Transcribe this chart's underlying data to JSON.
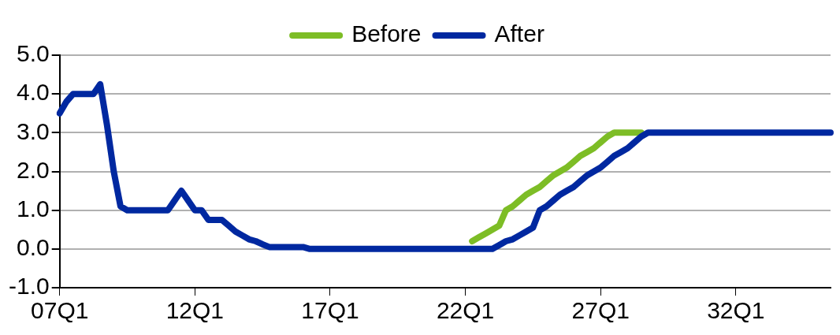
{
  "chart_data": {
    "type": "line",
    "categories": [
      "07Q1",
      null,
      null,
      null,
      null,
      null,
      null,
      null,
      null,
      null,
      null,
      null,
      null,
      null,
      null,
      null,
      null,
      null,
      null,
      null,
      "12Q1",
      null,
      null,
      null,
      null,
      null,
      null,
      null,
      null,
      null,
      null,
      null,
      null,
      null,
      null,
      null,
      null,
      null,
      null,
      null,
      "17Q1",
      null,
      null,
      null,
      null,
      null,
      null,
      null,
      null,
      null,
      null,
      null,
      null,
      null,
      null,
      null,
      null,
      null,
      null,
      null,
      "22Q1",
      null,
      null,
      null,
      null,
      null,
      null,
      null,
      null,
      null,
      null,
      null,
      null,
      null,
      null,
      null,
      null,
      null,
      null,
      null,
      "27Q1",
      null,
      null,
      null,
      null,
      null,
      null,
      null,
      null,
      null,
      null,
      null,
      null,
      null,
      null,
      null,
      null,
      null,
      null,
      null,
      "32Q1",
      null,
      null,
      null,
      null,
      null,
      null,
      null,
      null,
      null,
      null,
      null,
      null,
      null,
      null
    ],
    "series": [
      {
        "name": "Before",
        "color": "#7dbd26",
        "values": [
          null,
          null,
          null,
          null,
          null,
          null,
          null,
          null,
          null,
          null,
          null,
          null,
          null,
          null,
          null,
          null,
          null,
          null,
          null,
          null,
          null,
          null,
          null,
          null,
          null,
          null,
          null,
          null,
          null,
          null,
          null,
          null,
          null,
          null,
          null,
          null,
          null,
          null,
          null,
          null,
          null,
          null,
          null,
          null,
          null,
          null,
          null,
          null,
          null,
          null,
          null,
          null,
          null,
          null,
          null,
          null,
          null,
          null,
          null,
          null,
          null,
          0.2,
          0.3,
          0.4,
          0.5,
          0.6,
          1.0,
          1.1,
          1.25,
          1.4,
          1.5,
          1.6,
          1.75,
          1.9,
          2.0,
          2.1,
          2.25,
          2.4,
          2.5,
          2.6,
          2.75,
          2.9,
          3.0,
          3.0,
          3.0,
          3.0,
          3.0,
          null,
          null,
          null,
          null,
          null,
          null,
          null,
          null,
          null,
          null,
          null,
          null,
          null,
          null,
          null,
          null,
          null,
          null,
          null,
          null,
          null,
          null,
          null,
          null,
          null,
          null,
          null,
          null
        ]
      },
      {
        "name": "After",
        "color": "#0028a0",
        "values": [
          3.5,
          3.8,
          4.0,
          4.0,
          4.0,
          4.0,
          4.25,
          3.2,
          2.0,
          1.1,
          1.0,
          1.0,
          1.0,
          1.0,
          1.0,
          1.0,
          1.0,
          1.25,
          1.5,
          1.25,
          1.0,
          1.0,
          0.75,
          0.75,
          0.75,
          0.6,
          0.45,
          0.35,
          0.25,
          0.2,
          0.12,
          0.05,
          0.05,
          0.05,
          0.05,
          0.05,
          0.05,
          0,
          0,
          0,
          0,
          0,
          0,
          0,
          0,
          0,
          0,
          0,
          0,
          0,
          0,
          0,
          0,
          0,
          0,
          0,
          0,
          0,
          0,
          0,
          0,
          0,
          0,
          0,
          0,
          0.1,
          0.2,
          0.25,
          0.35,
          0.45,
          0.55,
          1.0,
          1.1,
          1.25,
          1.4,
          1.5,
          1.6,
          1.75,
          1.9,
          2.0,
          2.1,
          2.25,
          2.4,
          2.5,
          2.6,
          2.75,
          2.9,
          3.0,
          3.0,
          3.0,
          3.0,
          3.0,
          3.0,
          3.0,
          3.0,
          3.0,
          3.0,
          3.0,
          3.0,
          3.0,
          3.0,
          3.0,
          3.0,
          3.0,
          3.0,
          3.0,
          3.0,
          3.0,
          3.0,
          3.0,
          3.0,
          3.0,
          3.0,
          3.0,
          3.0
        ]
      }
    ],
    "ylim": [
      -1,
      5
    ],
    "yticks": [
      {
        "value": -1,
        "label": "-1.0"
      },
      {
        "value": 0,
        "label": "0.0"
      },
      {
        "value": 1,
        "label": "1.0"
      },
      {
        "value": 2,
        "label": "2.0"
      },
      {
        "value": 3,
        "label": "3.0"
      },
      {
        "value": 4,
        "label": "4.0"
      },
      {
        "value": 5,
        "label": "5.0"
      }
    ],
    "grid": "y",
    "legend": "top",
    "marker": "none",
    "line_style": "solid"
  }
}
